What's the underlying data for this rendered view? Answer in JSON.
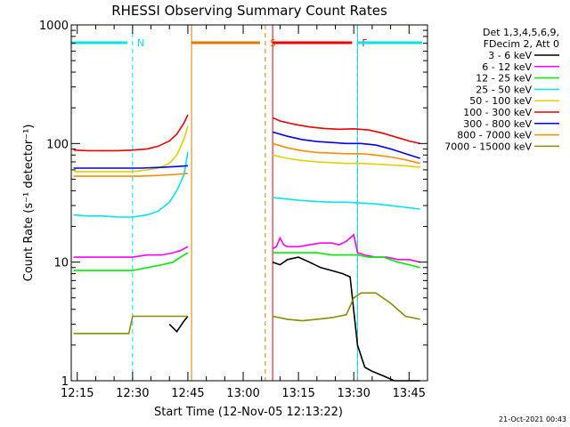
{
  "chart_data": {
    "type": "line",
    "title": "RHESSI Observing Summary Count Rates",
    "xlabel": "Start Time (12-Nov-05 12:13:22)",
    "ylabel": "Count Rate (s⁻¹ detector⁻¹)",
    "y_scale": "log",
    "ylim": [
      1,
      1000
    ],
    "xlim": [
      "12:13:22",
      "13:50:00"
    ],
    "x_ticks": [
      "12:15",
      "12:30",
      "12:45",
      "13:00",
      "13:15",
      "13:30",
      "13:45"
    ],
    "y_ticks": [
      "1",
      "10",
      "100",
      "1000"
    ],
    "legend_header": [
      "Det 1,3,4,5,6,9,",
      "FDecim 2, Att 0"
    ],
    "legend_position": "right",
    "timestamp": "21-Oct-2021 00:43",
    "markers": [
      {
        "label": "N",
        "start": "12:13:22",
        "end": "12:30:00",
        "color": "#00e5ee"
      },
      {
        "label": "S",
        "start": "12:46:00",
        "end": "13:06:00",
        "color": "#e07b00"
      },
      {
        "label": "F",
        "start": "13:08:00",
        "end": "13:31:00",
        "color": "#ee0000"
      },
      {
        "label": "",
        "start": "13:31:00",
        "end": "13:50:00",
        "color": "#00e5ee"
      }
    ],
    "data_gap": [
      "12:46:00",
      "13:08:00"
    ],
    "series": [
      {
        "name": "3 - 6 keV",
        "color": "#000000",
        "segments": [
          {
            "x": [
              "12:40",
              "12:42",
              "12:44",
              "12:45"
            ],
            "y": [
              3.0,
              2.6,
              3.2,
              3.5
            ]
          },
          {
            "x": [
              "13:08",
              "13:10",
              "13:12",
              "13:15",
              "13:18",
              "13:21",
              "13:24",
              "13:27",
              "13:29",
              "13:31",
              "13:33",
              "13:35",
              "13:38",
              "13:41",
              "13:44",
              "13:47",
              "13:48"
            ],
            "y": [
              10,
              9.5,
              10.5,
              11,
              10,
              9,
              8.5,
              8,
              7.5,
              2,
              1.3,
              1.2,
              1.1,
              1.0,
              1.0,
              1.0,
              1.0
            ]
          }
        ]
      },
      {
        "name": "6 - 12 keV",
        "color": "#ff00ff",
        "segments": [
          {
            "x": [
              "12:14",
              "12:18",
              "12:22",
              "12:26",
              "12:30",
              "12:34",
              "12:38",
              "12:41",
              "12:43",
              "12:45"
            ],
            "y": [
              11,
              11,
              11,
              11,
              11,
              11.5,
              11.5,
              12,
              12.5,
              13.5
            ]
          },
          {
            "x": [
              "13:08",
              "13:09",
              "13:10",
              "13:11",
              "13:12",
              "13:15",
              "13:18",
              "13:21",
              "13:24",
              "13:26",
              "13:28",
              "13:30",
              "13:31",
              "13:33",
              "13:36",
              "13:39",
              "13:42",
              "13:45",
              "13:48"
            ],
            "y": [
              13,
              13.5,
              16,
              14,
              13.5,
              13.5,
              14,
              14.5,
              14.5,
              14,
              15,
              17,
              12,
              11.5,
              11,
              11,
              10.5,
              10.5,
              10
            ]
          }
        ]
      },
      {
        "name": "12 - 25 keV",
        "color": "#00ee00",
        "segments": [
          {
            "x": [
              "12:14",
              "12:18",
              "12:22",
              "12:26",
              "12:30",
              "12:34",
              "12:38",
              "12:41",
              "12:43",
              "12:45"
            ],
            "y": [
              8.5,
              8.5,
              8.5,
              8.5,
              8.5,
              9,
              9.5,
              10,
              11,
              12
            ]
          },
          {
            "x": [
              "13:08",
              "13:12",
              "13:16",
              "13:20",
              "13:24",
              "13:28",
              "13:31",
              "13:34",
              "13:38",
              "13:42",
              "13:45",
              "13:48"
            ],
            "y": [
              12,
              12,
              12,
              12,
              11.5,
              11.5,
              11.5,
              11,
              11,
              10,
              9.5,
              9
            ]
          }
        ]
      },
      {
        "name": "25 - 50 keV",
        "color": "#00e5ee",
        "segments": [
          {
            "x": [
              "12:14",
              "12:18",
              "12:22",
              "12:26",
              "12:30",
              "12:34",
              "12:37",
              "12:40",
              "12:42",
              "12:44",
              "12:45"
            ],
            "y": [
              25,
              24.5,
              24.5,
              24,
              24,
              25,
              27,
              32,
              40,
              55,
              85
            ]
          },
          {
            "x": [
              "13:08",
              "13:12",
              "13:16",
              "13:20",
              "13:24",
              "13:28",
              "13:32",
              "13:36",
              "13:40",
              "13:44",
              "13:48"
            ],
            "y": [
              35,
              34,
              33,
              32.5,
              32,
              32,
              31.5,
              31,
              30,
              29,
              28
            ]
          }
        ]
      },
      {
        "name": "50 - 100 keV",
        "color": "#e0d000",
        "segments": [
          {
            "x": [
              "12:14",
              "12:18",
              "12:22",
              "12:26",
              "12:30",
              "12:34",
              "12:37",
              "12:40",
              "12:42",
              "12:44",
              "12:45"
            ],
            "y": [
              58,
              58,
              58,
              58,
              58,
              60,
              62,
              68,
              80,
              110,
              140
            ]
          },
          {
            "x": [
              "13:08",
              "13:12",
              "13:16",
              "13:20",
              "13:24",
              "13:28",
              "13:32",
              "13:36",
              "13:40",
              "13:44",
              "13:48"
            ],
            "y": [
              80,
              75,
              72,
              70,
              69,
              68,
              68,
              67,
              66,
              65,
              63
            ]
          }
        ]
      },
      {
        "name": "100 - 300 keV",
        "color": "#ee0000",
        "segments": [
          {
            "x": [
              "12:14",
              "12:18",
              "12:22",
              "12:26",
              "12:30",
              "12:34",
              "12:37",
              "12:40",
              "12:42",
              "12:44",
              "12:45"
            ],
            "y": [
              88,
              87,
              87,
              87,
              88,
              90,
              95,
              105,
              120,
              150,
              175
            ]
          },
          {
            "x": [
              "13:08",
              "13:10",
              "13:14",
              "13:18",
              "13:22",
              "13:26",
              "13:30",
              "13:34",
              "13:38",
              "13:42",
              "13:45",
              "13:48"
            ],
            "y": [
              165,
              155,
              145,
              138,
              134,
              132,
              133,
              130,
              122,
              112,
              105,
              100
            ]
          }
        ]
      },
      {
        "name": "300 - 800 keV",
        "color": "#0000ee",
        "segments": [
          {
            "x": [
              "12:14",
              "12:20",
              "12:26",
              "12:32",
              "12:38",
              "12:42",
              "12:45"
            ],
            "y": [
              62,
              62,
              62,
              62,
              63,
              64,
              65
            ]
          },
          {
            "x": [
              "13:08",
              "13:12",
              "13:16",
              "13:20",
              "13:24",
              "13:28",
              "13:32",
              "13:36",
              "13:40",
              "13:44",
              "13:48"
            ],
            "y": [
              125,
              115,
              108,
              104,
              102,
              100,
              100,
              97,
              90,
              82,
              75
            ]
          }
        ]
      },
      {
        "name": "800 - 7000 keV",
        "color": "#ff8c00",
        "segments": [
          {
            "x": [
              "12:14",
              "12:20",
              "12:26",
              "12:32",
              "12:38",
              "12:42",
              "12:45"
            ],
            "y": [
              53,
              53,
              53,
              53,
              54,
              55,
              56
            ]
          },
          {
            "x": [
              "13:08",
              "13:12",
              "13:16",
              "13:20",
              "13:24",
              "13:28",
              "13:32",
              "13:36",
              "13:40",
              "13:44",
              "13:48"
            ],
            "y": [
              100,
              92,
              87,
              84,
              83,
              82,
              82,
              80,
              77,
              73,
              68
            ]
          }
        ]
      },
      {
        "name": "7000 - 15000 keV",
        "color": "#8b8b00",
        "segments": [
          {
            "x": [
              "12:14",
              "12:18",
              "12:22",
              "12:26",
              "12:29",
              "12:30",
              "12:33",
              "12:36",
              "12:40",
              "12:43",
              "12:45"
            ],
            "y": [
              2.5,
              2.5,
              2.5,
              2.5,
              2.5,
              3.5,
              3.5,
              3.5,
              3.5,
              3.5,
              3.5
            ]
          },
          {
            "x": [
              "13:08",
              "13:12",
              "13:16",
              "13:20",
              "13:24",
              "13:28",
              "13:30",
              "13:32",
              "13:36",
              "13:40",
              "13:44",
              "13:48"
            ],
            "y": [
              3.5,
              3.3,
              3.2,
              3.3,
              3.4,
              3.6,
              5.0,
              5.5,
              5.5,
              4.5,
              3.5,
              3.3
            ]
          }
        ]
      }
    ]
  }
}
